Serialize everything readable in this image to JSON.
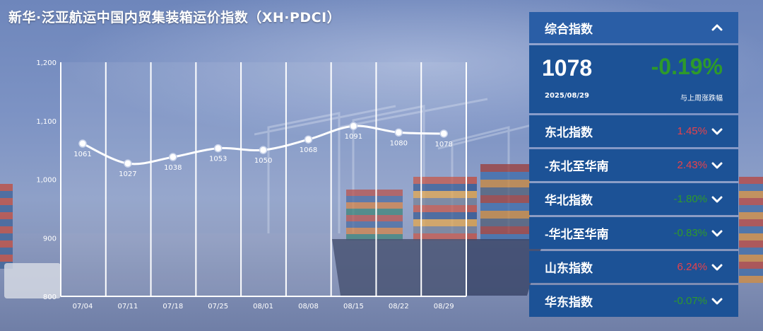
{
  "title": "新华·泛亚航运中国内贸集装箱运价指数（XH·PDCI）",
  "chart_data": {
    "type": "line",
    "categories": [
      "07/04",
      "07/11",
      "07/18",
      "07/25",
      "08/01",
      "08/08",
      "08/15",
      "08/22",
      "08/29"
    ],
    "values": [
      1061,
      1027,
      1038,
      1053,
      1050,
      1068,
      1091,
      1080,
      1078
    ],
    "ylim": [
      800,
      1200
    ],
    "yticks": [
      "1,200",
      "1,100",
      "1,000",
      "900",
      "800"
    ],
    "ytick_values": [
      1200,
      1100,
      1000,
      900,
      800
    ],
    "grid": "vertical",
    "line_color": "#ffffff"
  },
  "panel": {
    "header": "综合指数",
    "value": "1078",
    "date": "2025/08/29",
    "change": "-0.19%",
    "change_label": "与上周涨跌幅",
    "rows": [
      {
        "label": "东北指数",
        "value": "1.45%",
        "trend": "up"
      },
      {
        "label": "-东北至华南",
        "value": "2.43%",
        "trend": "up"
      },
      {
        "label": "华北指数",
        "value": "-1.80%",
        "trend": "down"
      },
      {
        "label": "-华北至华南",
        "value": "-0.83%",
        "trend": "down"
      },
      {
        "label": "山东指数",
        "value": "6.24%",
        "trend": "up"
      },
      {
        "label": "华东指数",
        "value": "-0.07%",
        "trend": "down"
      }
    ]
  },
  "colors": {
    "up": "#e8414a",
    "down": "#2e9a2a",
    "panel": "#1c5296",
    "panel_header": "#2a5ea6"
  }
}
